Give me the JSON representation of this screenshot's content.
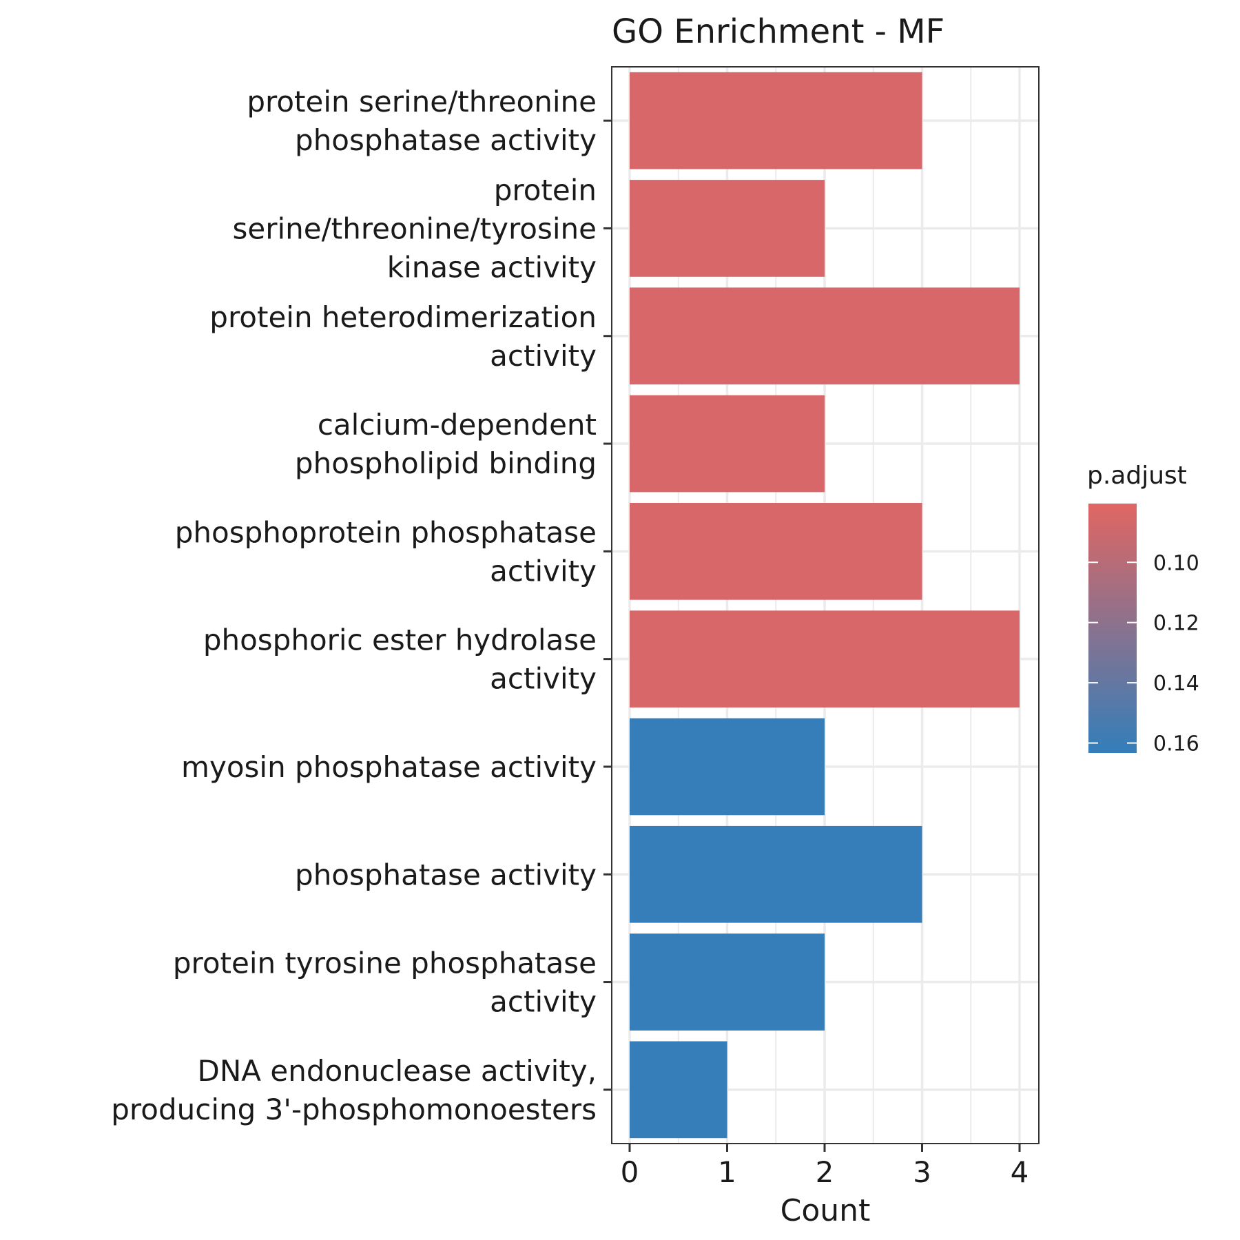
{
  "chart_data": {
    "type": "bar",
    "orientation": "horizontal",
    "title": "GO Enrichment - MF",
    "xlabel": "Count",
    "ylabel": "",
    "xlim": [
      0,
      4
    ],
    "x_ticks": [
      "0",
      "1",
      "2",
      "3",
      "4"
    ],
    "categories": [
      [
        "protein serine/threonine",
        "phosphatase activity"
      ],
      [
        "protein",
        "serine/threonine/tyrosine",
        "kinase activity"
      ],
      [
        "protein heterodimerization",
        "activity"
      ],
      [
        "calcium-dependent",
        "phospholipid binding"
      ],
      [
        "phosphoprotein phosphatase",
        "activity"
      ],
      [
        "phosphoric ester hydrolase",
        "activity"
      ],
      [
        "myosin phosphatase activity"
      ],
      [
        "phosphatase activity"
      ],
      [
        "protein tyrosine phosphatase",
        "activity"
      ],
      [
        "DNA endonuclease activity,",
        "producing 3'-phosphomonoesters"
      ]
    ],
    "values": [
      3,
      2,
      4,
      2,
      3,
      4,
      2,
      3,
      2,
      1
    ],
    "p_adjust": [
      0.085,
      0.085,
      0.085,
      0.085,
      0.085,
      0.085,
      0.162,
      0.162,
      0.162,
      0.162
    ],
    "legend": {
      "title": "p.adjust",
      "position": "right",
      "ticks": [
        "0.10",
        "0.12",
        "0.14",
        "0.16"
      ],
      "tick_values": [
        0.1,
        0.12,
        0.14,
        0.16
      ],
      "range": [
        0.0805,
        0.1633
      ],
      "low_color": "#E06663",
      "high_color": "#337EBA"
    },
    "grid": true
  }
}
